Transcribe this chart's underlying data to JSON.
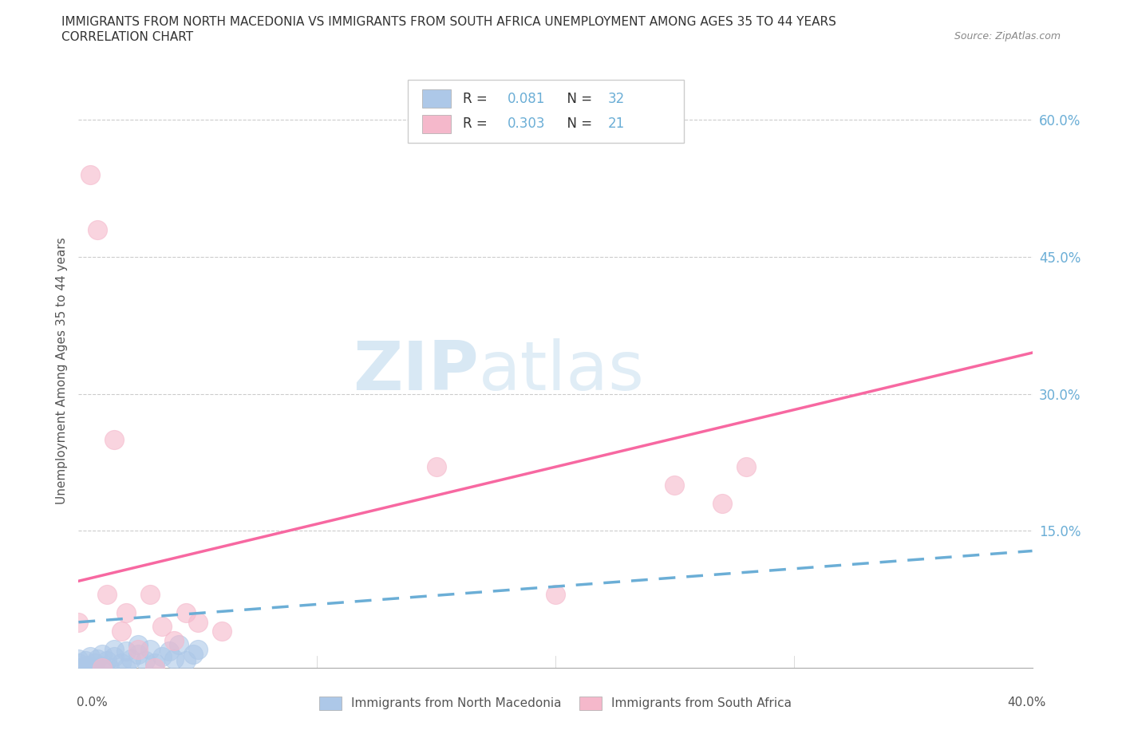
{
  "title_line1": "IMMIGRANTS FROM NORTH MACEDONIA VS IMMIGRANTS FROM SOUTH AFRICA UNEMPLOYMENT AMONG AGES 35 TO 44 YEARS",
  "title_line2": "CORRELATION CHART",
  "source_text": "Source: ZipAtlas.com",
  "ylabel": "Unemployment Among Ages 35 to 44 years",
  "xlim": [
    0.0,
    0.4
  ],
  "ylim": [
    0.0,
    0.65
  ],
  "yticks": [
    0.0,
    0.15,
    0.3,
    0.45,
    0.6
  ],
  "ytick_labels": [
    "",
    "15.0%",
    "30.0%",
    "45.0%",
    "60.0%"
  ],
  "watermark_zip": "ZIP",
  "watermark_atlas": "atlas",
  "legend_r1": "R = 0.081",
  "legend_n1": "N = 32",
  "legend_r2": "R = 0.303",
  "legend_n2": "N = 21",
  "color_blue": "#adc8e8",
  "color_pink": "#f5b8cb",
  "line_blue_color": "#6baed6",
  "line_pink_color": "#f768a1",
  "nm_x": [
    0.0,
    0.0,
    0.0,
    0.002,
    0.003,
    0.004,
    0.005,
    0.005,
    0.007,
    0.008,
    0.01,
    0.01,
    0.012,
    0.013,
    0.015,
    0.015,
    0.018,
    0.02,
    0.02,
    0.022,
    0.025,
    0.025,
    0.028,
    0.03,
    0.032,
    0.035,
    0.038,
    0.04,
    0.042,
    0.045,
    0.048,
    0.05
  ],
  "nm_y": [
    0.0,
    0.005,
    0.01,
    0.0,
    0.008,
    0.003,
    0.0,
    0.012,
    0.005,
    0.01,
    0.002,
    0.015,
    0.008,
    0.0,
    0.012,
    0.02,
    0.005,
    0.0,
    0.018,
    0.01,
    0.015,
    0.025,
    0.008,
    0.02,
    0.005,
    0.012,
    0.018,
    0.01,
    0.025,
    0.008,
    0.015,
    0.02
  ],
  "sa_x": [
    0.0,
    0.005,
    0.008,
    0.01,
    0.012,
    0.015,
    0.018,
    0.02,
    0.025,
    0.03,
    0.032,
    0.035,
    0.04,
    0.045,
    0.05,
    0.06,
    0.15,
    0.2,
    0.25,
    0.27,
    0.28
  ],
  "sa_y": [
    0.05,
    0.54,
    0.48,
    0.0,
    0.08,
    0.25,
    0.04,
    0.06,
    0.02,
    0.08,
    0.0,
    0.045,
    0.03,
    0.06,
    0.05,
    0.04,
    0.22,
    0.08,
    0.2,
    0.18,
    0.22
  ],
  "sa_line_x0": 0.0,
  "sa_line_y0": 0.095,
  "sa_line_x1": 0.4,
  "sa_line_y1": 0.345,
  "nm_line_x0": 0.0,
  "nm_line_y0": 0.05,
  "nm_line_x1": 0.4,
  "nm_line_y1": 0.128
}
